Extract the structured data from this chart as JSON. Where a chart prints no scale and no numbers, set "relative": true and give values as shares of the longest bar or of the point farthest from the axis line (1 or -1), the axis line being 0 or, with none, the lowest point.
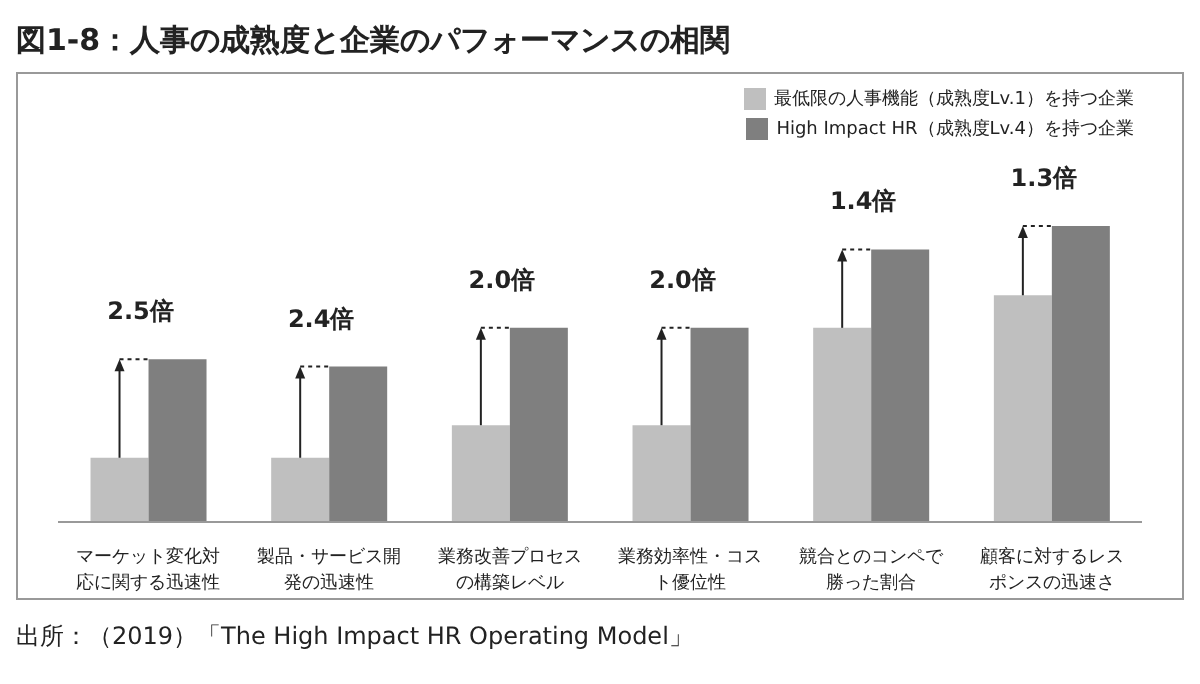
{
  "chart_data": {
    "type": "bar",
    "title": "図1-8：人事の成熟度と企業のパフォーマンスの相関",
    "relative": true,
    "categories": [
      "マーケット変化対応に関する迅速性",
      "製品・サービス開発の迅速性",
      "業務改善プロセスの構築レベル",
      "業務効率性・コスト優位性",
      "競合とのコンペで勝った割合",
      "顧客に対するレスポンスの迅速さ"
    ],
    "series": [
      {
        "name": "最低限の人事機能（成熟度Lv.1）を持つ企業",
        "color": "#bfbfbf",
        "values": [
          0.217,
          0.217,
          0.327,
          0.327,
          0.656,
          0.766
        ]
      },
      {
        "name": "High Impact HR（成熟度Lv.4）を持つ企業",
        "color": "#7f7f7f",
        "values": [
          0.55,
          0.525,
          0.656,
          0.656,
          0.921,
          1
        ]
      }
    ],
    "annotations": [
      {
        "text": "2.5倍",
        "x": "マーケット変化対応に関する迅速性",
        "y": 0.55
      },
      {
        "text": "2.4倍",
        "x": "製品・サービス開発の迅速性",
        "y": 0.525
      },
      {
        "text": "2.0倍",
        "x": "業務改善プロセスの構築レベル",
        "y": 0.656
      },
      {
        "text": "2.0倍",
        "x": "業務効率性・コスト優位性",
        "y": 0.656
      },
      {
        "text": "1.4倍",
        "x": "競合とのコンペで勝った割合",
        "y": 0.921
      },
      {
        "text": "1.3倍",
        "x": "顧客に対するレスポンスの迅速さ",
        "y": 1
      },
      "出所：（2019）「The High Impact HR Operating Model」"
    ],
    "legend": "top right"
  }
}
